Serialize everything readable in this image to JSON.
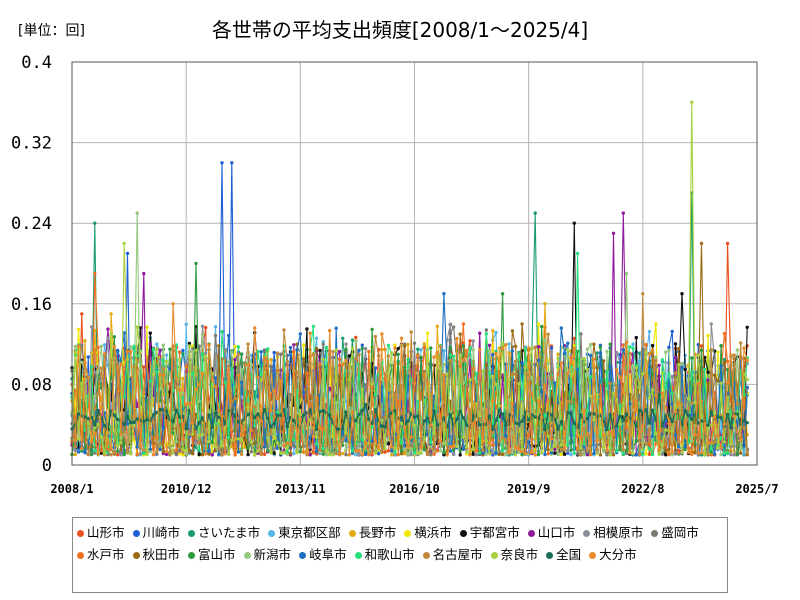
{
  "unit_label": "[単位：回]",
  "title": "各世帯の平均支出頻度[2008/1～2025/4]",
  "chart_data": {
    "type": "line",
    "title": "各世帯の平均支出頻度[2008/1～2025/4]",
    "unit": "回",
    "xlabel": "",
    "ylabel": "",
    "x_range": [
      "2008/1",
      "2025/7"
    ],
    "x_ticks": [
      "2008/1",
      "2010/12",
      "2013/11",
      "2016/10",
      "2019/9",
      "2022/8",
      "2025/7"
    ],
    "ylim": [
      0,
      0.4
    ],
    "y_ticks": [
      "0",
      "0.08",
      "0.16",
      "0.24",
      "0.32",
      "0.4"
    ],
    "grid": true,
    "legend_position": "bottom",
    "series": [
      {
        "name": "山形市",
        "color": "#e8501e",
        "peaks": [
          [
            2008.25,
            0.15
          ],
          [
            2024.75,
            0.22
          ]
        ]
      },
      {
        "name": "川崎市",
        "color": "#1f5fd6",
        "peaks": [
          [
            2009.4,
            0.21
          ],
          [
            2011.8,
            0.3
          ],
          [
            2012.1,
            0.3
          ]
        ]
      },
      {
        "name": "さいたま市",
        "color": "#1a9c6c",
        "peaks": [
          [
            2008.6,
            0.24
          ],
          [
            2019.8,
            0.25
          ],
          [
            2023.8,
            0.27
          ]
        ]
      },
      {
        "name": "東京都区部",
        "color": "#56b7e6",
        "peaks": [
          [
            2010.2,
            0.12
          ],
          [
            2022.3,
            0.12
          ]
        ]
      },
      {
        "name": "長野市",
        "color": "#e4aa12",
        "peaks": [
          [
            2009.0,
            0.15
          ],
          [
            2020.1,
            0.16
          ]
        ]
      },
      {
        "name": "横浜市",
        "color": "#f2e600",
        "peaks": [
          [
            2019.9,
            0.14
          ],
          [
            2022.9,
            0.14
          ]
        ]
      },
      {
        "name": "宇都宮市",
        "color": "#111111",
        "peaks": [
          [
            2020.8,
            0.24
          ],
          [
            2023.6,
            0.17
          ]
        ]
      },
      {
        "name": "山口市",
        "color": "#8e1a9c",
        "peaks": [
          [
            2009.8,
            0.19
          ],
          [
            2021.8,
            0.23
          ],
          [
            2022.1,
            0.25
          ]
        ]
      },
      {
        "name": "相模原市",
        "color": "#8a8e99",
        "peaks": [
          [
            2015.0,
            0.12
          ],
          [
            2024.3,
            0.14
          ]
        ]
      },
      {
        "name": "盛岡市",
        "color": "#7a7a72",
        "peaks": [
          [
            2016.5,
            0.12
          ],
          [
            2021.0,
            0.13
          ]
        ]
      },
      {
        "name": "水戸市",
        "color": "#f07022",
        "peaks": [
          [
            2008.6,
            0.19
          ],
          [
            2018.0,
            0.14
          ]
        ]
      },
      {
        "name": "秋田市",
        "color": "#9a6a14",
        "peaks": [
          [
            2024.1,
            0.22
          ],
          [
            2019.5,
            0.14
          ]
        ]
      },
      {
        "name": "富山市",
        "color": "#2e9a3e",
        "peaks": [
          [
            2011.2,
            0.2
          ],
          [
            2019.0,
            0.17
          ]
        ]
      },
      {
        "name": "新潟市",
        "color": "#96c880",
        "peaks": [
          [
            2009.7,
            0.25
          ],
          [
            2022.2,
            0.19
          ]
        ]
      },
      {
        "name": "岐阜市",
        "color": "#1f6fc0",
        "peaks": [
          [
            2017.5,
            0.17
          ],
          [
            2013.8,
            0.13
          ]
        ]
      },
      {
        "name": "和歌山市",
        "color": "#26e07c",
        "peaks": [
          [
            2020.9,
            0.21
          ],
          [
            2018.6,
            0.13
          ]
        ]
      },
      {
        "name": "名古屋市",
        "color": "#c08a3c",
        "peaks": [
          [
            2022.6,
            0.17
          ],
          [
            2012.5,
            0.12
          ]
        ]
      },
      {
        "name": "奈良市",
        "color": "#a8d040",
        "peaks": [
          [
            2009.3,
            0.22
          ],
          [
            2023.8,
            0.36
          ]
        ]
      },
      {
        "name": "全国",
        "color": "#1a6e5a",
        "peaks": [
          [
            2015.5,
            0.06
          ],
          [
            2023.0,
            0.07
          ]
        ]
      },
      {
        "name": "大分市",
        "color": "#e88a2a",
        "peaks": [
          [
            2010.6,
            0.16
          ],
          [
            2015.9,
            0.13
          ]
        ]
      }
    ]
  }
}
